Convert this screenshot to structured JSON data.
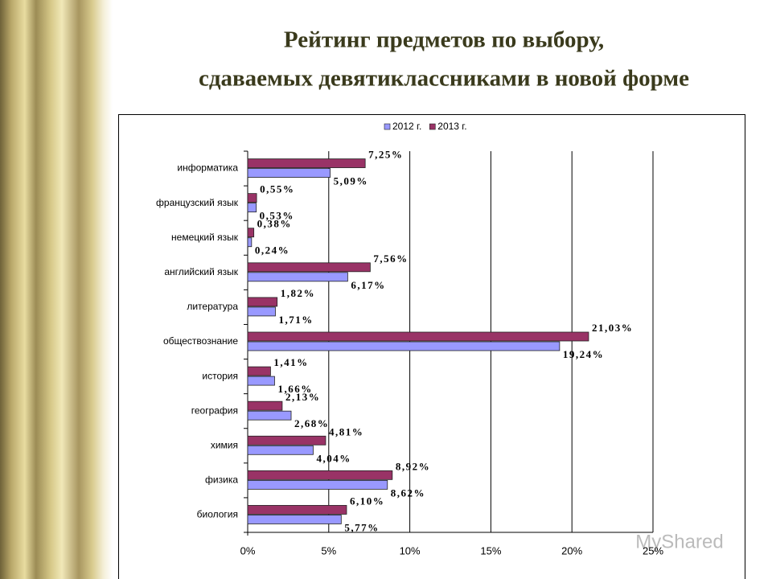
{
  "chart_data": {
    "type": "hbar",
    "title": [
      "Рейтинг предметов по выбору,",
      "сдаваемых девятиклассниками в новой форме"
    ],
    "categories": [
      "информатика",
      "французский язык",
      "немецкий язык",
      "английский язык",
      "литература",
      "обществознание",
      "история",
      "география",
      "химия",
      "физика",
      "биология"
    ],
    "series": [
      {
        "name": "2012 г.",
        "color": "#9999ff",
        "values": [
          5.09,
          0.53,
          0.24,
          6.17,
          1.71,
          19.24,
          1.66,
          2.68,
          4.04,
          8.62,
          5.77
        ],
        "value_labels": [
          "5,09%",
          "0,53%",
          "0,24%",
          "6,17%",
          "1,71%",
          "19,24%",
          "1,66%",
          "2,68%",
          "4,04%",
          "8,62%",
          "5,77%"
        ]
      },
      {
        "name": "2013 г.",
        "color": "#993366",
        "values": [
          7.25,
          0.55,
          0.38,
          7.56,
          1.82,
          21.03,
          1.41,
          2.13,
          4.81,
          8.92,
          6.1
        ],
        "value_labels": [
          "7,25%",
          "0,55%",
          "0,38%",
          "7,56%",
          "1,82%",
          "21,03%",
          "1,41%",
          "2,13%",
          "4,81%",
          "8,92%",
          "6,10%"
        ]
      }
    ],
    "xlim": [
      0,
      25
    ],
    "xticks": [
      {
        "value": 0,
        "label": "0%"
      },
      {
        "value": 5,
        "label": "5%"
      },
      {
        "value": 10,
        "label": "10%"
      },
      {
        "value": 15,
        "label": "15%"
      },
      {
        "value": 20,
        "label": "20%"
      },
      {
        "value": 25,
        "label": "25%"
      }
    ],
    "grid": true,
    "legend": "top",
    "watermark": "MyShared"
  }
}
